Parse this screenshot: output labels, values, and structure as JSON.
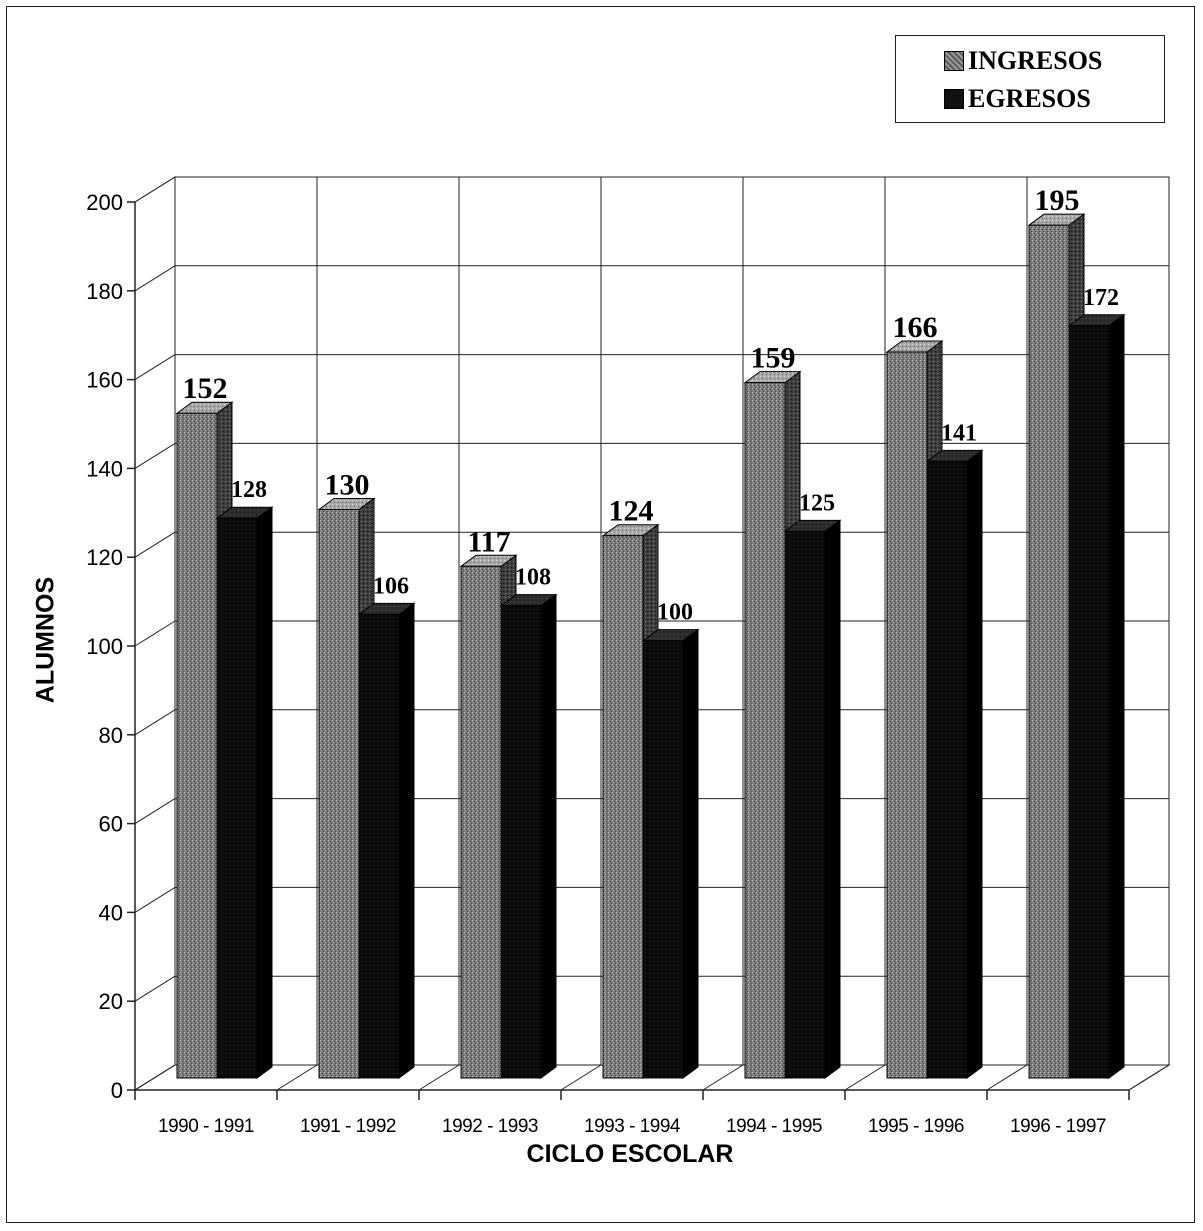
{
  "chart_data": {
    "type": "bar",
    "categories": [
      "1990 - 1991",
      "1991 - 1992",
      "1992 - 1993",
      "1993 - 1994",
      "1994 - 1995",
      "1995 - 1996",
      "1996 - 1997"
    ],
    "series": [
      {
        "name": "INGRESOS",
        "values": [
          152,
          130,
          117,
          124,
          159,
          166,
          195
        ],
        "color": "#7a7a7a"
      },
      {
        "name": "EGRESOS",
        "values": [
          128,
          106,
          108,
          100,
          125,
          141,
          172
        ],
        "color": "#0d0d0d"
      }
    ],
    "xlabel": "CICLO ESCOLAR",
    "ylabel": "ALUMNOS",
    "ylim": [
      0,
      200
    ],
    "yticks": [
      0,
      20,
      40,
      60,
      80,
      100,
      120,
      140,
      160,
      180,
      200
    ],
    "grid": true,
    "legend_position": "top-right",
    "style": "3d-clustered-columns"
  }
}
